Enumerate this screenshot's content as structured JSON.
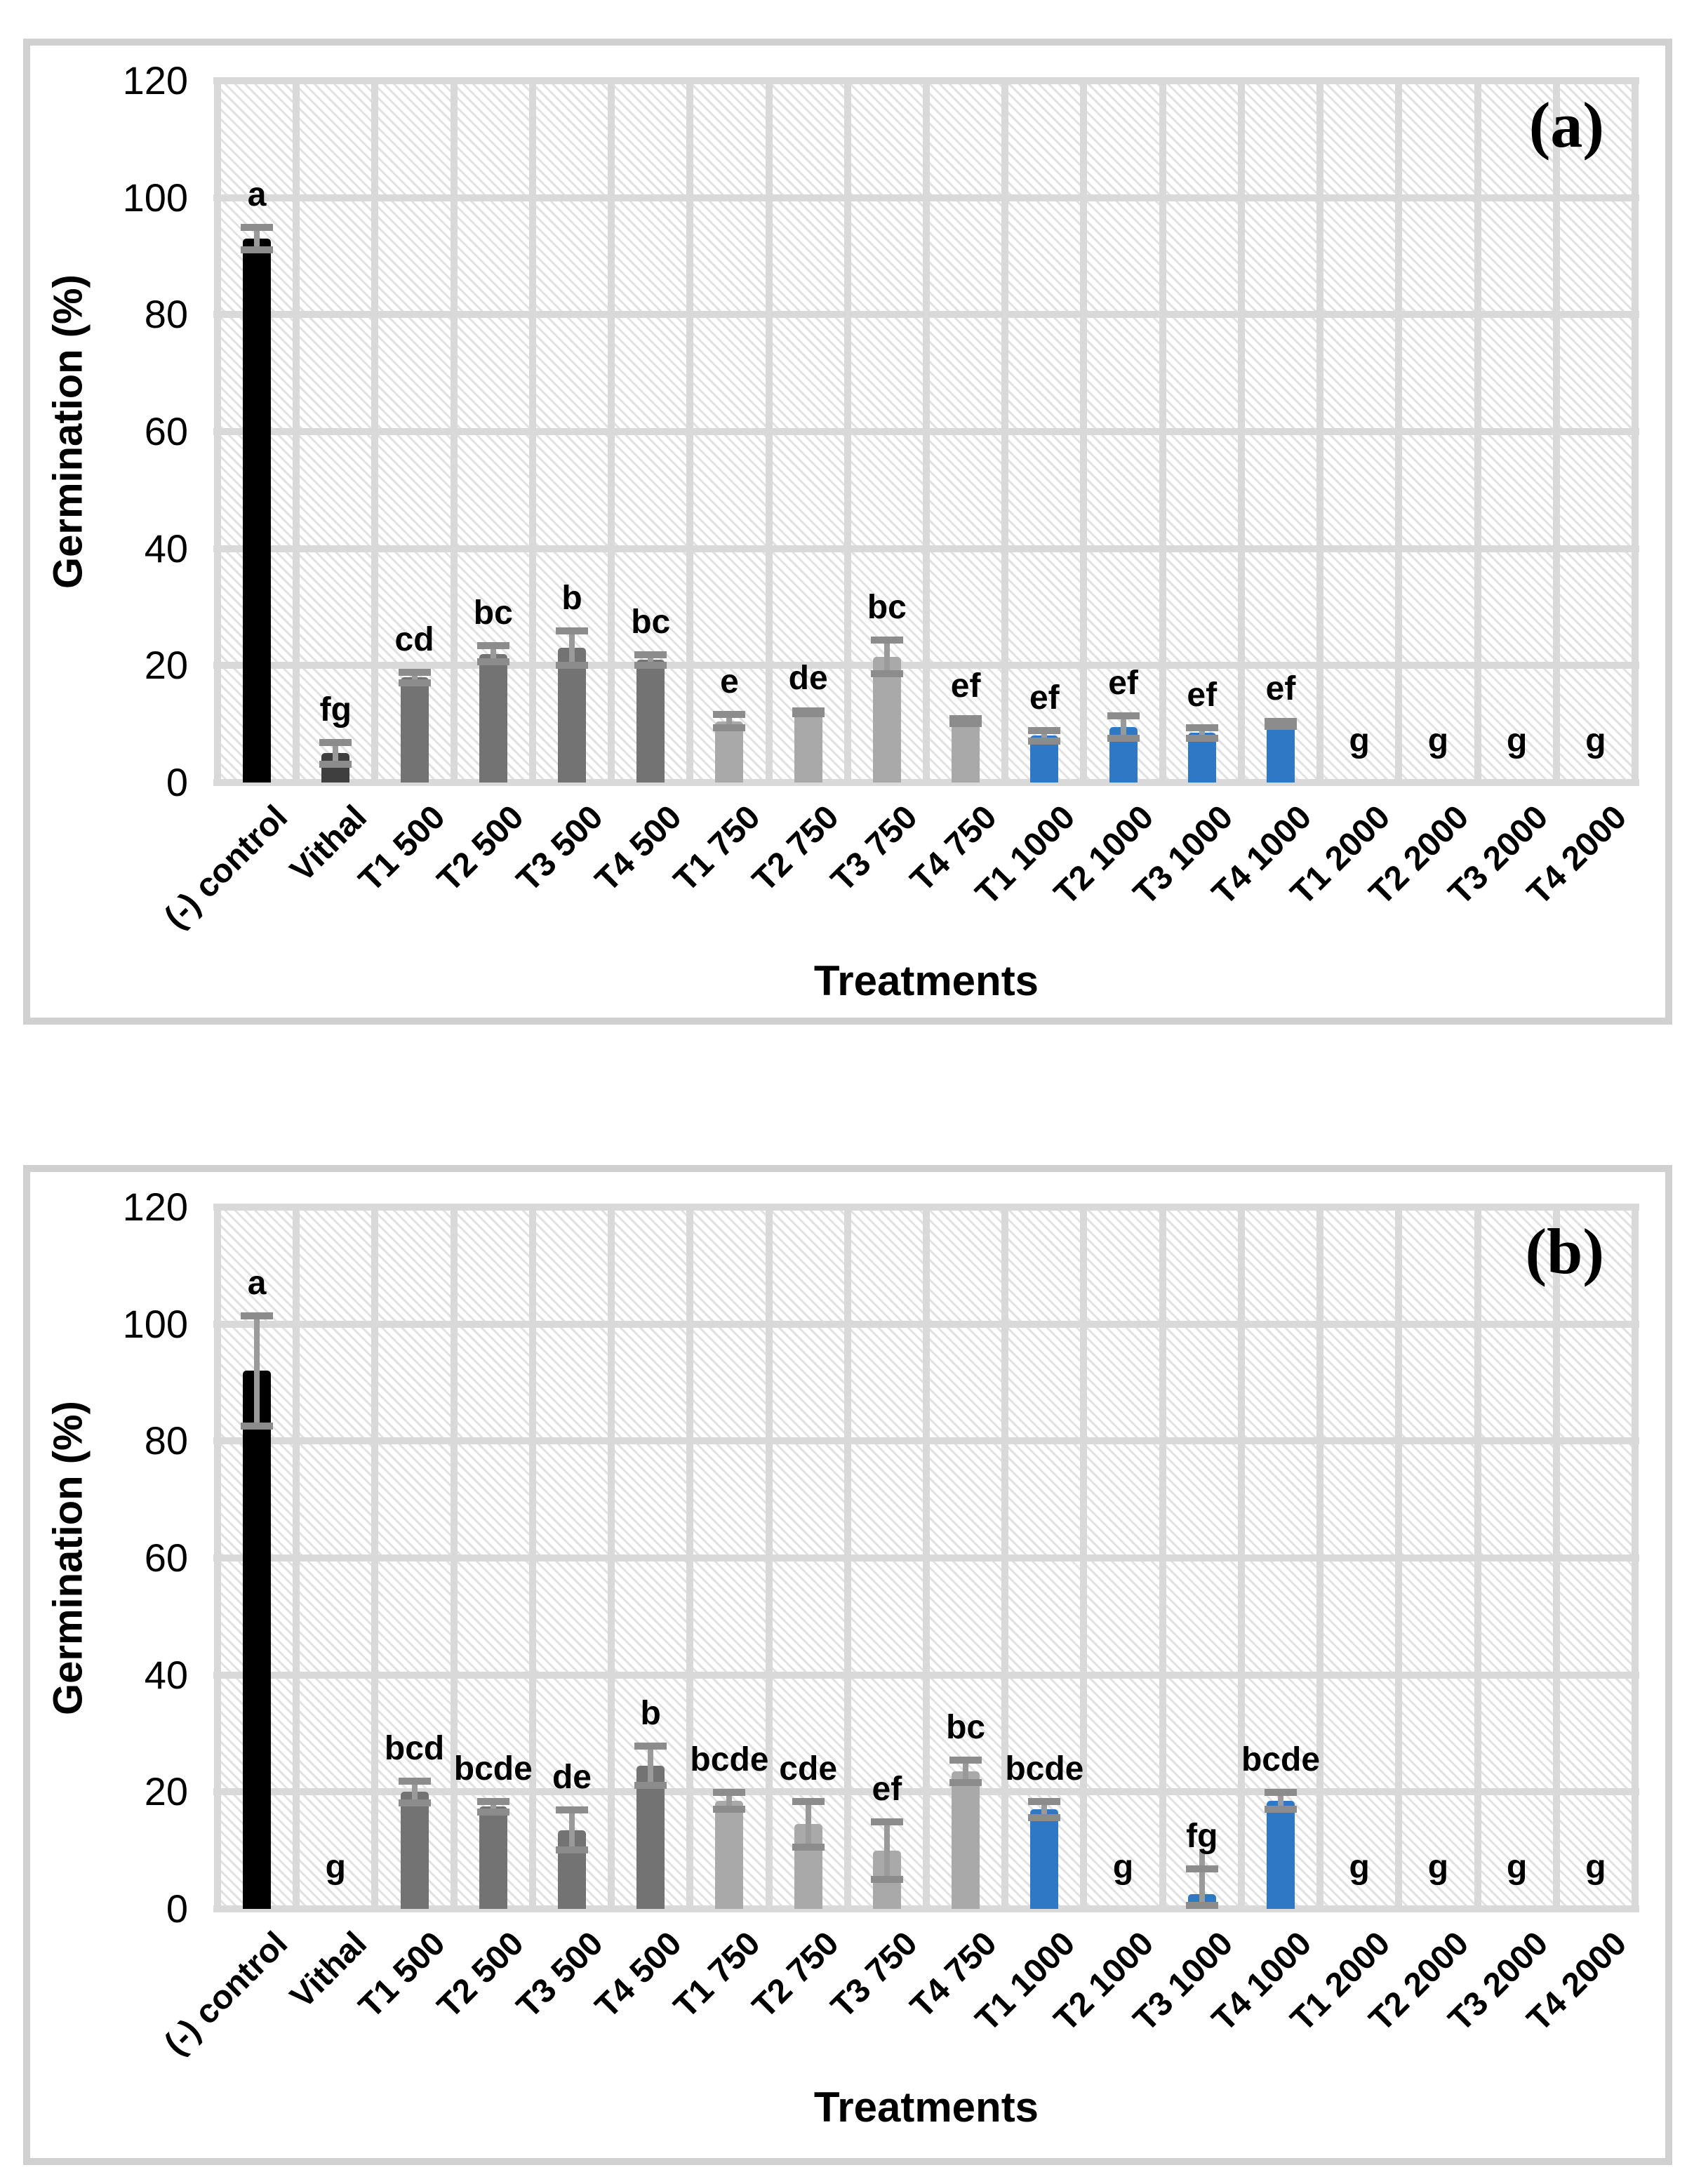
{
  "figure": {
    "description": "Two-panel bar chart of germination percentage by treatment with significance letters and error bars",
    "panels": [
      {
        "tag": "(a)"
      },
      {
        "tag": "(b)"
      }
    ]
  },
  "chart_data": [
    {
      "type": "bar",
      "panel_label": "(a)",
      "ylabel": "Germination (%)",
      "xlabel": "Treatments",
      "ylim": [
        0,
        120
      ],
      "yticks": [
        0,
        20,
        40,
        60,
        80,
        100,
        120
      ],
      "grid": "horizontal and vertical light-gray gridlines over hatched plot background",
      "legend": "none",
      "categories": [
        "(-) control",
        "Vithal",
        "T1 500",
        "T2 500",
        "T3 500",
        "T4 500",
        "T1 750",
        "T2 750",
        "T3 750",
        "T4 750",
        "T1 1000",
        "T2 1000",
        "T3 1000",
        "T4 1000",
        "T1 2000",
        "T2 2000",
        "T3 2000",
        "T4 2000"
      ],
      "values": [
        93,
        5,
        18,
        22,
        23,
        21,
        10.5,
        12,
        21.5,
        10.5,
        8,
        9.5,
        8.5,
        10,
        0,
        0,
        0,
        0
      ],
      "errors": [
        2.5,
        2.5,
        1.5,
        2,
        3.5,
        1.5,
        1.7,
        0.8,
        3.5,
        1,
        1.5,
        2.5,
        1.5,
        1,
        0,
        0,
        0,
        0
      ],
      "sig_letters": [
        "a",
        "fg",
        "cd",
        "bc",
        "b",
        "bc",
        "e",
        "de",
        "bc",
        "ef",
        "ef",
        "ef",
        "ef",
        "ef",
        "g",
        "g",
        "g",
        "g"
      ],
      "bar_colors": [
        "#000000",
        "#3F3F3F",
        "#737373",
        "#737373",
        "#737373",
        "#737373",
        "#A9A9A9",
        "#A9A9A9",
        "#A9A9A9",
        "#A9A9A9",
        "#2E78C6",
        "#2E78C6",
        "#2E78C6",
        "#2E78C6",
        null,
        null,
        null,
        null
      ]
    },
    {
      "type": "bar",
      "panel_label": "(b)",
      "ylabel": "Germination (%)",
      "xlabel": "Treatments",
      "ylim": [
        0,
        120
      ],
      "yticks": [
        0,
        20,
        40,
        60,
        80,
        100,
        120
      ],
      "grid": "horizontal and vertical light-gray gridlines over hatched plot background",
      "legend": "none",
      "categories": [
        "(-) control",
        "Vithal",
        "T1 500",
        "T2 500",
        "T3 500",
        "T4 500",
        "T1 750",
        "T2 750",
        "T3 750",
        "T4 750",
        "T1 1000",
        "T2 1000",
        "T3 1000",
        "T4 1000",
        "T1 2000",
        "T2 2000",
        "T3 2000",
        "T4 2000"
      ],
      "values": [
        92,
        0,
        20,
        17.5,
        13.5,
        24.5,
        18.5,
        14.5,
        10,
        23.5,
        17,
        0,
        2.5,
        18.5,
        0,
        0,
        0,
        0
      ],
      "errors": [
        10,
        0,
        2.5,
        1.5,
        4,
        4,
        2,
        4.5,
        5.5,
        2.5,
        2,
        0,
        5,
        2,
        0,
        0,
        0,
        0
      ],
      "sig_letters": [
        "a",
        "g",
        "bcd",
        "bcde",
        "de",
        "b",
        "bcde",
        "cde",
        "ef",
        "bc",
        "bcde",
        "g",
        "fg",
        "bcde",
        "g",
        "g",
        "g",
        "g"
      ],
      "bar_colors": [
        "#000000",
        null,
        "#737373",
        "#737373",
        "#737373",
        "#737373",
        "#A9A9A9",
        "#A9A9A9",
        "#A9A9A9",
        "#A9A9A9",
        "#2E78C6",
        null,
        "#2E78C6",
        "#2E78C6",
        null,
        null,
        null,
        null
      ]
    }
  ],
  "theme": {
    "bar_black": "#000000",
    "bar_dark_gray": "#3F3F3F",
    "bar_gray_500": "#737373",
    "bar_gray_750": "#A9A9A9",
    "bar_blue_1000": "#2E78C6",
    "error_bar_line": "#9A9A9A",
    "error_bar_cap": "#8C8C8C",
    "gridline": "#D9D9D9",
    "hatch_line": "#E1E1E1",
    "panel_border": "#D0D0D0",
    "text": "#000000",
    "background": "#FFFFFF"
  }
}
